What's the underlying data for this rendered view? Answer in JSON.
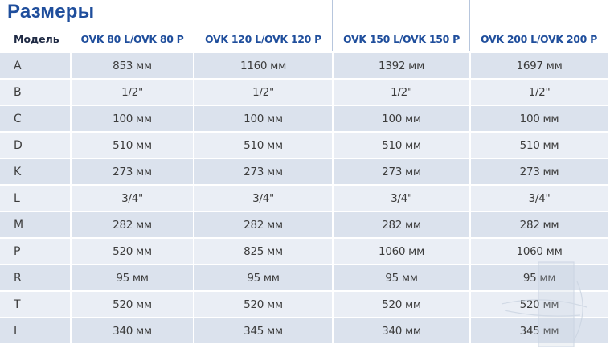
{
  "title": "Размеры",
  "table": {
    "headers": [
      "Модель",
      "OVK 80 L/OVK 80 P",
      "OVK 120 L/OVK 120 P",
      "OVK 150 L/OVK 150 P",
      "OVK 200 L/OVK 200 P"
    ],
    "rows": [
      [
        "A",
        "853 мм",
        "1160 мм",
        "1392 мм",
        "1697 мм"
      ],
      [
        "B",
        "1/2\"",
        "1/2\"",
        "1/2\"",
        "1/2\""
      ],
      [
        "C",
        "100 мм",
        "100 мм",
        "100 мм",
        "100 мм"
      ],
      [
        "D",
        "510 мм",
        "510 мм",
        "510 мм",
        "510 мм"
      ],
      [
        "K",
        "273 мм",
        "273 мм",
        "273 мм",
        "273 мм"
      ],
      [
        "L",
        "3/4\"",
        "3/4\"",
        "3/4\"",
        "3/4\""
      ],
      [
        "M",
        "282 мм",
        "282 мм",
        "282 мм",
        "282 мм"
      ],
      [
        "P",
        "520 мм",
        "825 мм",
        "1060 мм",
        "1060 мм"
      ],
      [
        "R",
        "95 мм",
        "95 мм",
        "95 мм",
        "95 мм"
      ],
      [
        "T",
        "520 мм",
        "520 мм",
        "520 мм",
        "520 мм"
      ],
      [
        "I",
        "340 мм",
        "345 мм",
        "340 мм",
        "345 мм"
      ]
    ]
  },
  "colors": {
    "title": "#1f4e9c",
    "row_dark": "#dbe2ed",
    "row_light": "#eaeef5"
  }
}
